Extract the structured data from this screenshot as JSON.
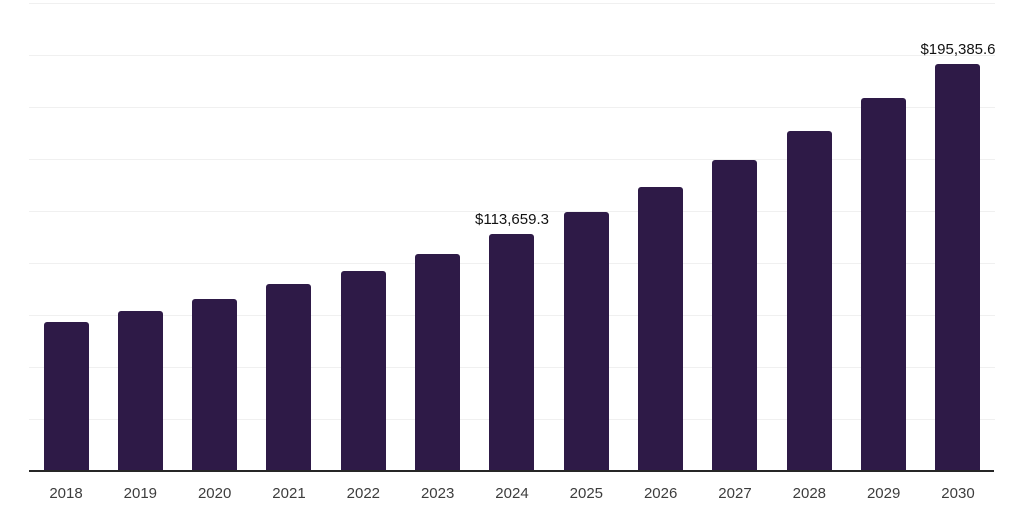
{
  "chart_data": {
    "type": "bar",
    "title": "",
    "xlabel": "",
    "ylabel": "",
    "categories": [
      "2018",
      "2019",
      "2020",
      "2021",
      "2022",
      "2023",
      "2024",
      "2025",
      "2026",
      "2027",
      "2028",
      "2029",
      "2030"
    ],
    "values": [
      71000,
      76300,
      82200,
      89200,
      95700,
      103900,
      113659.3,
      124000,
      136300,
      149100,
      162800,
      179000,
      195385.6
    ],
    "data_labels": {
      "2024": "$113,659.3",
      "2030": "$195,385.6"
    },
    "ylim": [
      0,
      225000
    ],
    "gridline_step": 25000,
    "grid": "horizontal",
    "legend": "none",
    "colors": {
      "bar": "#2e1a47",
      "axis_line": "#262626",
      "gridline": "#f0f0f0",
      "tick_label": "#3d3d3d",
      "value_label": "#121212"
    }
  }
}
